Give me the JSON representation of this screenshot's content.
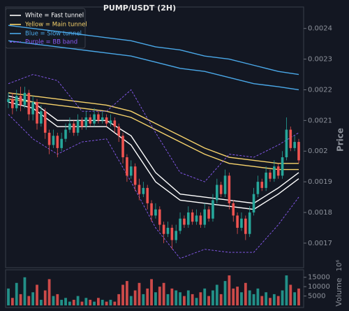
{
  "chart_data": [
    {
      "type": "candlestick",
      "title": "PUMP/USDT (2H)",
      "y_label": "Price",
      "ylim": [
        0.00162,
        0.00247
      ],
      "yticks": [
        0.0017,
        0.0018,
        0.0019,
        0.002,
        0.0021,
        0.0022,
        0.0023,
        0.0024
      ],
      "up_color": "#26a69a",
      "down_color": "#ef5350",
      "legend": "upper left",
      "open": [
        0.00216,
        0.00217,
        0.00214,
        0.00218,
        0.00215,
        0.00219,
        0.00212,
        0.00216,
        0.00209,
        0.00213,
        0.00206,
        0.00202,
        0.00205,
        0.00201,
        0.00204,
        0.00207,
        0.00209,
        0.00206,
        0.0021,
        0.00208,
        0.00211,
        0.00209,
        0.00212,
        0.0021,
        0.00211,
        0.00209,
        0.0021,
        0.00208,
        0.00205,
        0.00198,
        0.00192,
        0.00195,
        0.00189,
        0.00186,
        0.00188,
        0.00183,
        0.00179,
        0.00181,
        0.00176,
        0.00173,
        0.00175,
        0.00171,
        0.00174,
        0.00178,
        0.00176,
        0.0018,
        0.00177,
        0.00179,
        0.00176,
        0.00181,
        0.00178,
        0.00184,
        0.00189,
        0.00186,
        0.00192,
        0.00183,
        0.00179,
        0.00175,
        0.00178,
        0.00173,
        0.0018,
        0.00186,
        0.0019,
        0.00188,
        0.00193,
        0.00191,
        0.00195,
        0.00192,
        0.00198,
        0.00207,
        0.00201,
        0.00203
      ],
      "high": [
        0.00219,
        0.00219,
        0.0022,
        0.00221,
        0.00221,
        0.0022,
        0.00218,
        0.00217,
        0.00215,
        0.00214,
        0.00207,
        0.00207,
        0.00206,
        0.00206,
        0.00209,
        0.00211,
        0.0021,
        0.00212,
        0.00211,
        0.00213,
        0.00212,
        0.00214,
        0.00213,
        0.00213,
        0.00212,
        0.00212,
        0.00211,
        0.00209,
        0.00206,
        0.00199,
        0.00197,
        0.00196,
        0.00191,
        0.0019,
        0.00189,
        0.00184,
        0.00183,
        0.00182,
        0.00177,
        0.00177,
        0.00176,
        0.00176,
        0.0018,
        0.00179,
        0.00182,
        0.00181,
        0.00181,
        0.0018,
        0.00183,
        0.00182,
        0.00186,
        0.00191,
        0.0019,
        0.00194,
        0.00193,
        0.00184,
        0.0018,
        0.0018,
        0.00179,
        0.00182,
        0.00188,
        0.00192,
        0.00191,
        0.00195,
        0.00194,
        0.00197,
        0.00196,
        0.002,
        0.00211,
        0.00208,
        0.00205,
        0.00204
      ],
      "low": [
        0.00214,
        0.00212,
        0.00213,
        0.00213,
        0.00214,
        0.0021,
        0.0021,
        0.00207,
        0.00208,
        0.00204,
        0.00199,
        0.00201,
        0.00198,
        0.002,
        0.00203,
        0.00206,
        0.00205,
        0.00205,
        0.00207,
        0.00207,
        0.00208,
        0.00208,
        0.00209,
        0.00209,
        0.00208,
        0.00208,
        0.00206,
        0.00203,
        0.00196,
        0.0019,
        0.00191,
        0.00187,
        0.00184,
        0.00185,
        0.00181,
        0.00177,
        0.00178,
        0.00174,
        0.0017,
        0.00172,
        0.00168,
        0.0017,
        0.00173,
        0.00175,
        0.00175,
        0.00176,
        0.00176,
        0.00175,
        0.00175,
        0.00177,
        0.00177,
        0.00183,
        0.00185,
        0.00185,
        0.00181,
        0.00177,
        0.00173,
        0.00174,
        0.00171,
        0.00172,
        0.00179,
        0.00185,
        0.00187,
        0.00187,
        0.0019,
        0.0019,
        0.00191,
        0.00191,
        0.00197,
        0.002,
        0.002,
        0.00196
      ],
      "close": [
        0.00217,
        0.00214,
        0.00218,
        0.00215,
        0.00219,
        0.00212,
        0.00216,
        0.00209,
        0.00213,
        0.00206,
        0.00202,
        0.00205,
        0.00201,
        0.00204,
        0.00207,
        0.00209,
        0.00206,
        0.0021,
        0.00208,
        0.00211,
        0.00209,
        0.00212,
        0.0021,
        0.00211,
        0.00209,
        0.0021,
        0.00208,
        0.00205,
        0.00198,
        0.00192,
        0.00195,
        0.00189,
        0.00186,
        0.00188,
        0.00183,
        0.00179,
        0.00181,
        0.00176,
        0.00173,
        0.00175,
        0.00171,
        0.00174,
        0.00178,
        0.00176,
        0.0018,
        0.00177,
        0.00179,
        0.00176,
        0.00181,
        0.00178,
        0.00184,
        0.00189,
        0.00186,
        0.00192,
        0.00183,
        0.00179,
        0.00175,
        0.00178,
        0.00173,
        0.0018,
        0.00186,
        0.0019,
        0.00188,
        0.00193,
        0.00191,
        0.00195,
        0.00192,
        0.00198,
        0.00207,
        0.00201,
        0.00203,
        0.00197
      ],
      "lines": [
        {
          "name": "White = Fast tunnel",
          "color": "#ffffff",
          "x": [
            0,
            6,
            12,
            18,
            24,
            30,
            36,
            42,
            48,
            54,
            60,
            66,
            71
          ],
          "upper": [
            0.00218,
            0.00216,
            0.0021,
            0.0021,
            0.0021,
            0.00205,
            0.00193,
            0.00186,
            0.00185,
            0.00184,
            0.00183,
            0.00188,
            0.00193
          ],
          "lower": [
            0.00216,
            0.00214,
            0.00208,
            0.00208,
            0.00208,
            0.00202,
            0.0019,
            0.00184,
            0.00183,
            0.00182,
            0.00181,
            0.00186,
            0.00191
          ]
        },
        {
          "name": "Yellow = Main tunnel",
          "color": "#f7d36b",
          "x": [
            0,
            6,
            12,
            18,
            24,
            30,
            36,
            42,
            48,
            54,
            60,
            66,
            71
          ],
          "upper": [
            0.00219,
            0.00218,
            0.00217,
            0.00216,
            0.00215,
            0.00213,
            0.00209,
            0.00205,
            0.00201,
            0.00198,
            0.00197,
            0.00196,
            0.00196
          ],
          "lower": [
            0.00217,
            0.00216,
            0.00215,
            0.00214,
            0.00213,
            0.00211,
            0.00207,
            0.00203,
            0.00199,
            0.00196,
            0.00195,
            0.00194,
            0.00194
          ]
        },
        {
          "name": "Blue = Slow tunnel",
          "color": "#4aa8e8",
          "x": [
            0,
            6,
            12,
            18,
            24,
            30,
            36,
            42,
            48,
            54,
            60,
            66,
            71
          ],
          "upper": [
            0.00241,
            0.0024,
            0.00239,
            0.00238,
            0.00237,
            0.00236,
            0.00234,
            0.00233,
            0.00231,
            0.0023,
            0.00228,
            0.00226,
            0.00225
          ],
          "lower": [
            0.00236,
            0.00235,
            0.00234,
            0.00233,
            0.00232,
            0.00231,
            0.00229,
            0.00227,
            0.00226,
            0.00224,
            0.00222,
            0.00221,
            0.0022
          ]
        },
        {
          "name": "Purple = BB band",
          "color": "#8b5cf6",
          "dashed": true,
          "x": [
            0,
            6,
            12,
            18,
            24,
            30,
            36,
            42,
            48,
            54,
            60,
            66,
            71
          ],
          "upper": [
            0.00222,
            0.00225,
            0.00223,
            0.00213,
            0.00213,
            0.0022,
            0.00206,
            0.00193,
            0.0019,
            0.00199,
            0.00198,
            0.00202,
            0.00206
          ],
          "lower": [
            0.00212,
            0.00204,
            0.00199,
            0.00203,
            0.00204,
            0.0019,
            0.00175,
            0.00165,
            0.00168,
            0.00167,
            0.00167,
            0.00176,
            0.00185
          ]
        }
      ]
    },
    {
      "type": "bar",
      "y_label": "Volume",
      "offset_text": "10⁶",
      "ylim": [
        0,
        19000
      ],
      "yticks": [
        5000,
        10000,
        15000
      ],
      "values": [
        9000,
        4000,
        12000,
        6000,
        15000,
        5000,
        7000,
        11000,
        3000,
        8000,
        14000,
        5000,
        6000,
        3000,
        4000,
        2000,
        3000,
        5000,
        2000,
        4000,
        3000,
        2000,
        4000,
        3000,
        2000,
        3000,
        2000,
        6000,
        11000,
        13000,
        5000,
        8000,
        12000,
        6000,
        9000,
        14000,
        7000,
        10000,
        12000,
        6000,
        9000,
        8000,
        7000,
        5000,
        8000,
        6000,
        4000,
        7000,
        9000,
        5000,
        8000,
        11000,
        6000,
        13000,
        16000,
        9000,
        10000,
        7000,
        12000,
        8000,
        6000,
        9000,
        5000,
        7000,
        4000,
        6000,
        5000,
        8000,
        16000,
        11000,
        7000,
        9000
      ]
    }
  ]
}
